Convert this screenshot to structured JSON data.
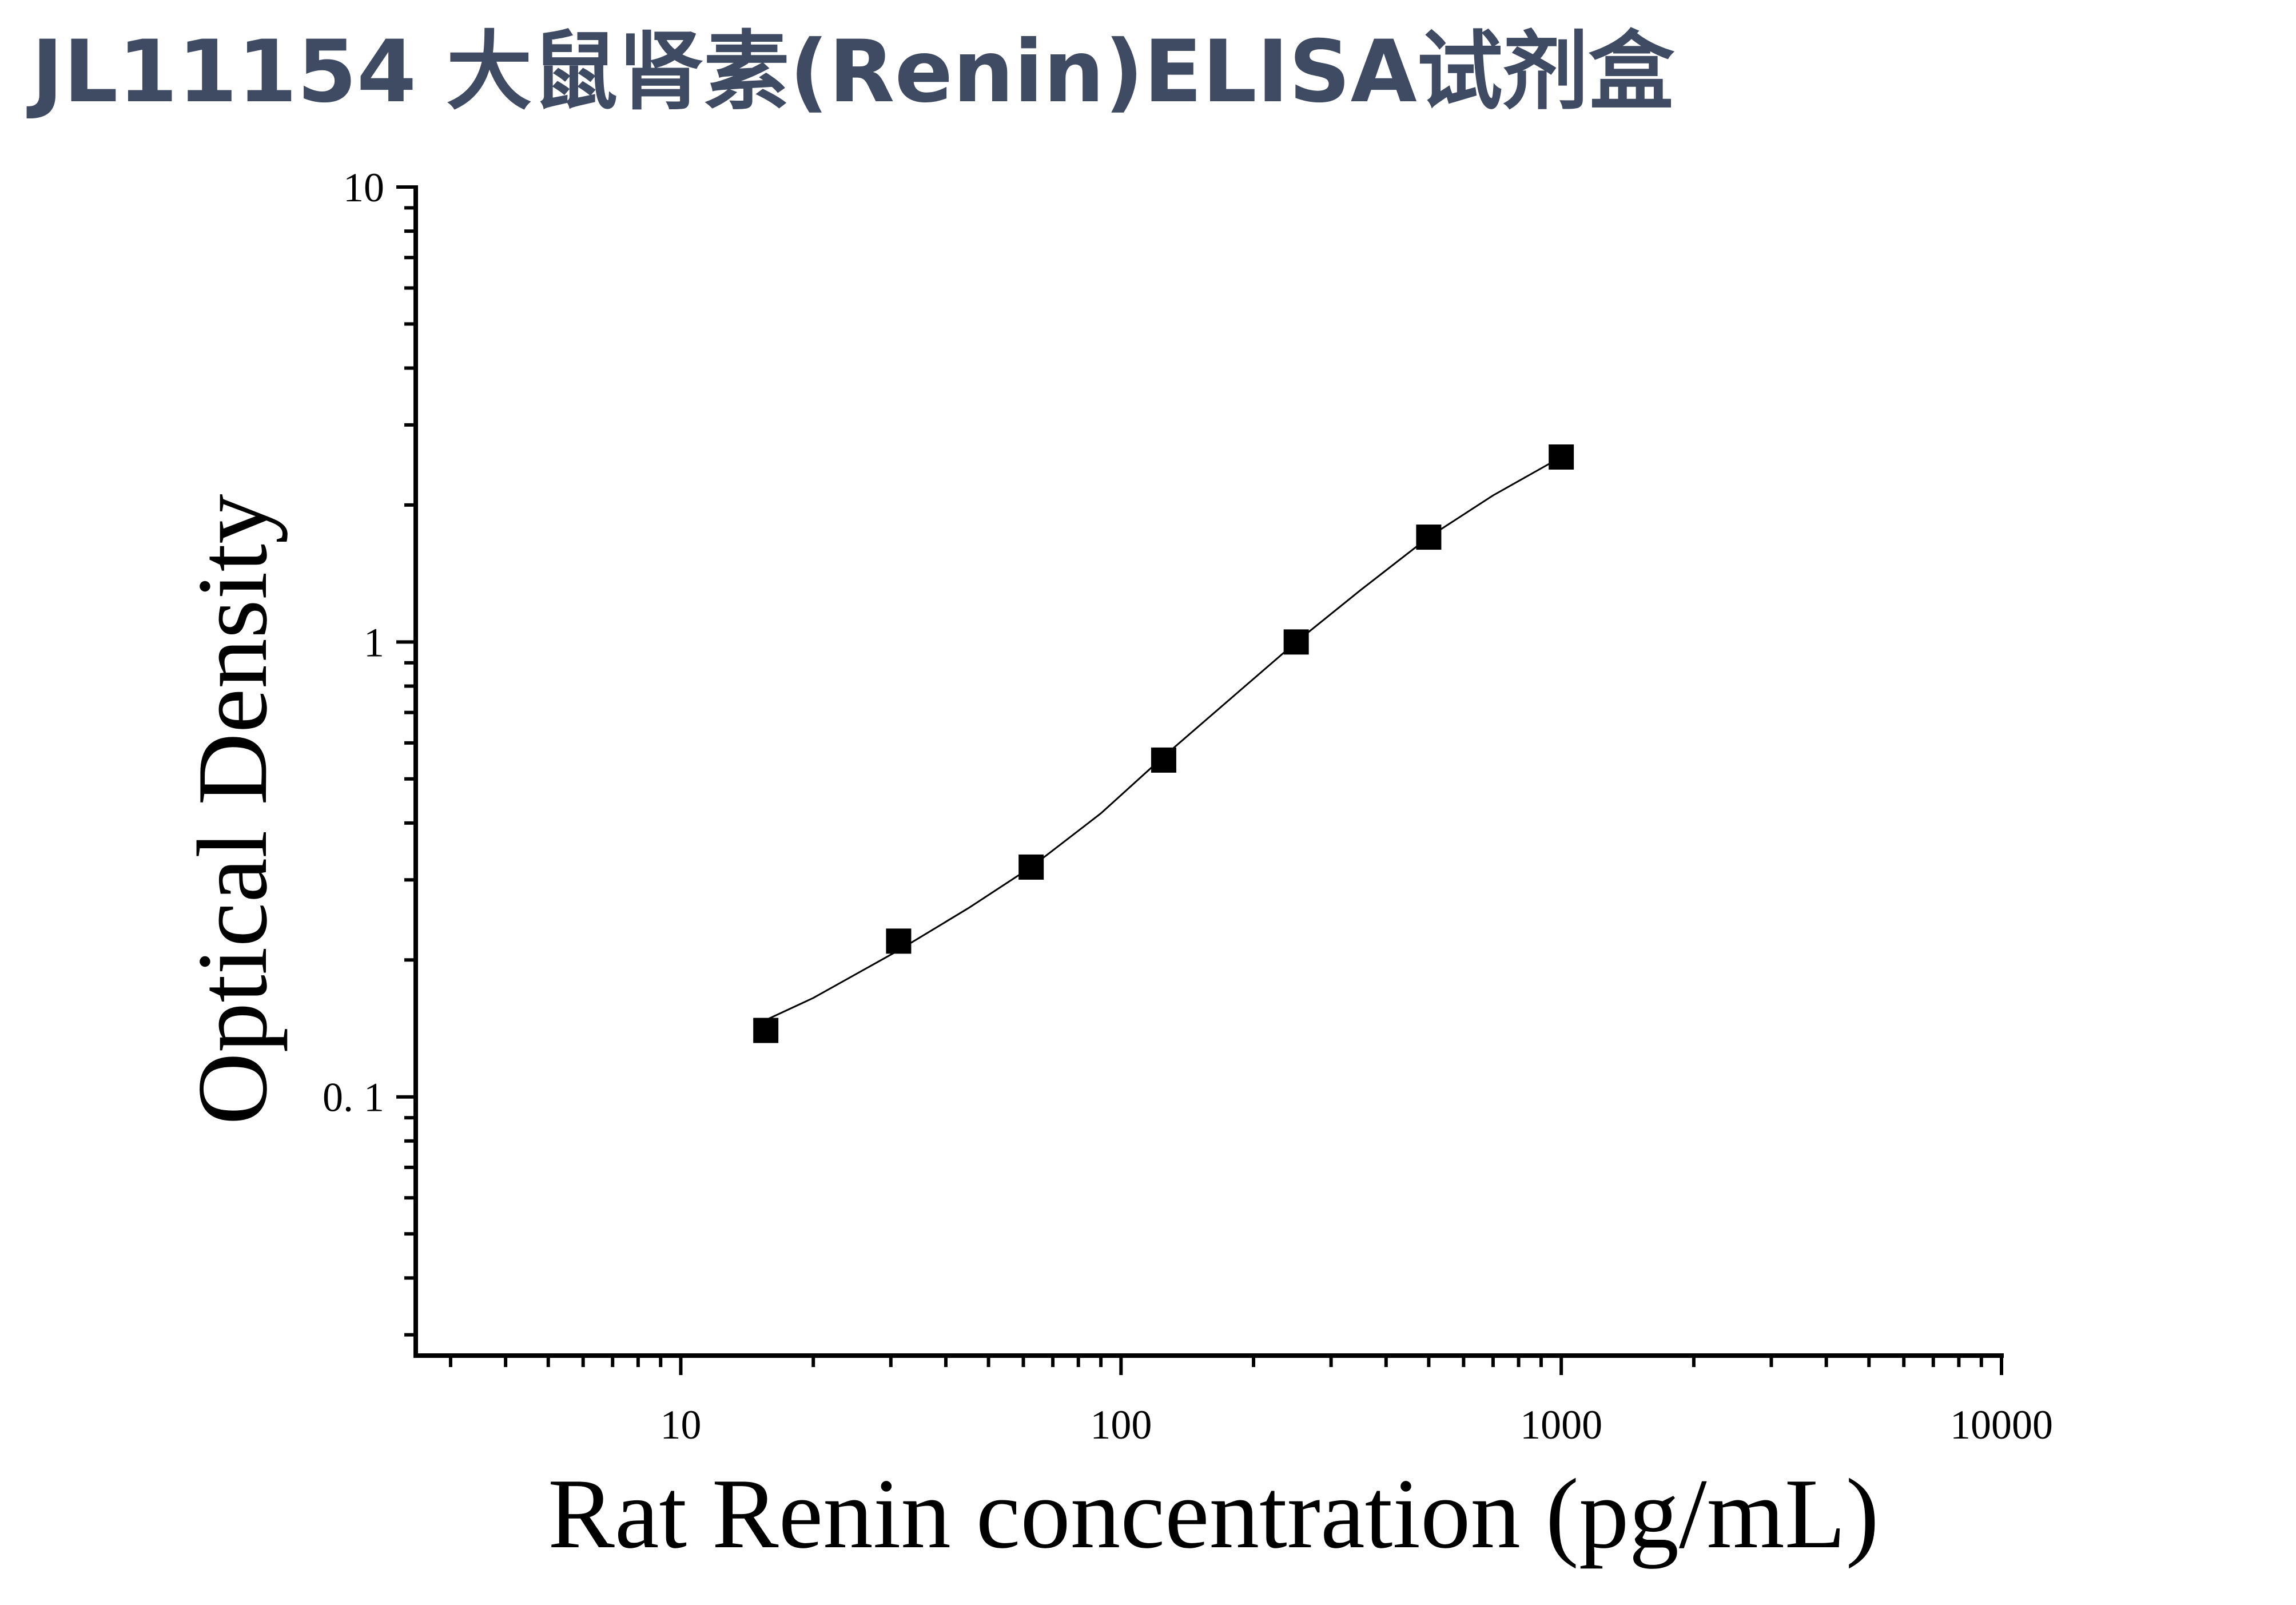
{
  "title": "JL11154 大鼠肾素(Renin)ELISA试剂盒",
  "chart_data": {
    "type": "scatter",
    "title": "JL11154 大鼠肾素(Renin)ELISA试剂盒",
    "xlabel": "Rat Renin concentration (pg/mL)",
    "ylabel": "Optical Density",
    "x_scale": "log",
    "y_scale": "log",
    "xlim": [
      2.5,
      10000
    ],
    "ylim": [
      0.027,
      10
    ],
    "x_ticks": [
      10,
      100,
      1000,
      10000
    ],
    "x_tick_labels": [
      "10",
      "100",
      "1000",
      "10000"
    ],
    "y_ticks": [
      0.1,
      1,
      10
    ],
    "y_tick_labels": [
      "0. 1",
      "1",
      "10"
    ],
    "grid": false,
    "legend": "none",
    "series": [
      {
        "marker": "square",
        "color": "#000000",
        "x": [
          15.6,
          31.25,
          62.5,
          125,
          250,
          500,
          1000
        ],
        "y": [
          0.14,
          0.22,
          0.32,
          0.55,
          1.0,
          1.7,
          2.55
        ]
      }
    ],
    "fit_curve": {
      "color": "#000000",
      "x": [
        15,
        20,
        31.25,
        45,
        62.5,
        90,
        125,
        180,
        250,
        350,
        500,
        700,
        1000
      ],
      "y": [
        0.145,
        0.165,
        0.21,
        0.26,
        0.32,
        0.42,
        0.56,
        0.76,
        1.0,
        1.3,
        1.7,
        2.1,
        2.55
      ]
    }
  }
}
